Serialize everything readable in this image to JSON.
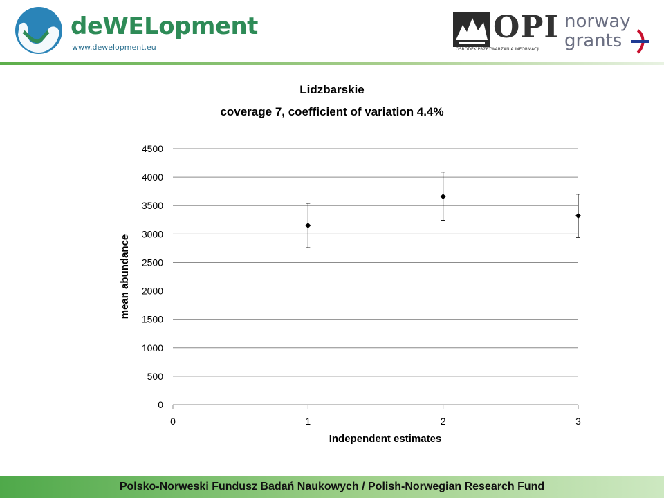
{
  "header": {
    "brand_name": "deWELopment",
    "brand_url": "www.dewelopment.eu",
    "opi_text": "OPI",
    "opi_subtitle": "OŚRODEK PRZETWARZANIA INFORMACJI",
    "norway_line1": "norway",
    "norway_line2": "grants"
  },
  "chart_data": {
    "type": "scatter",
    "title": "Lidzbarskie",
    "subtitle": "coverage 7, coefficient of variation 4.4%",
    "xlabel": "Independent estimates",
    "ylabel": "mean abundance",
    "xlim": [
      0,
      3
    ],
    "ylim": [
      0,
      4500
    ],
    "x_ticks": [
      "0",
      "1",
      "2",
      "3"
    ],
    "y_ticks": [
      "0",
      "500",
      "1000",
      "1500",
      "2000",
      "2500",
      "3000",
      "3500",
      "4000",
      "4500"
    ],
    "grid": true,
    "legend": "none",
    "series": [
      {
        "x": [
          1,
          2,
          3
        ],
        "y": [
          3150,
          3660,
          3320
        ],
        "error_low": [
          2760,
          3240,
          2940
        ],
        "error_high": [
          3540,
          4090,
          3700
        ]
      }
    ]
  },
  "footer": {
    "text": "Polsko-Norweski Fundusz Badań Naukowych / Polish-Norwegian Research Fund"
  }
}
